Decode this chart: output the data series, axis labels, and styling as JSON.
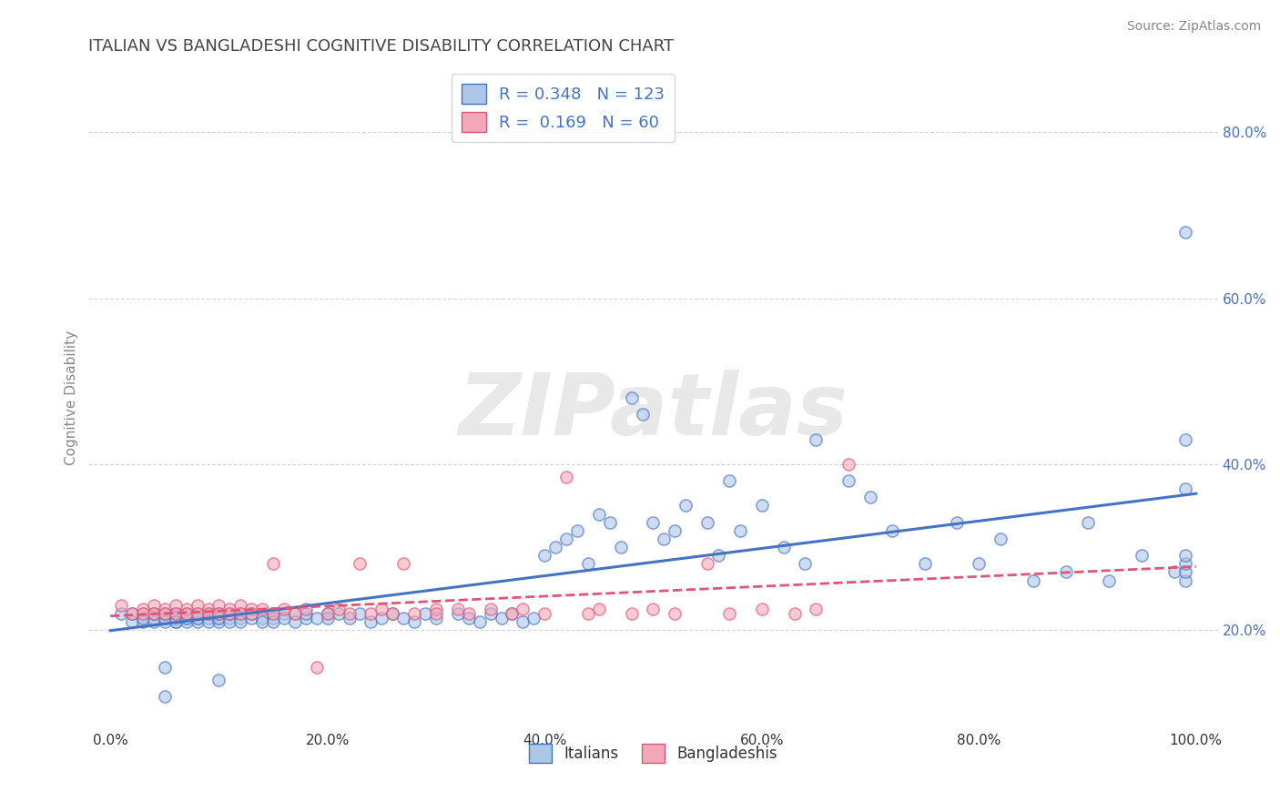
{
  "title": "ITALIAN VS BANGLADESHI COGNITIVE DISABILITY CORRELATION CHART",
  "source": "Source: ZipAtlas.com",
  "xlabel_italians": "Italians",
  "xlabel_bangladeshis": "Bangladeshis",
  "ylabel": "Cognitive Disability",
  "xlim": [
    -0.02,
    1.02
  ],
  "ylim": [
    0.08,
    0.88
  ],
  "xticks": [
    0.0,
    0.2,
    0.4,
    0.6,
    0.8,
    1.0
  ],
  "xticklabels": [
    "0.0%",
    "20.0%",
    "40.0%",
    "60.0%",
    "80.0%",
    "100.0%"
  ],
  "yticks": [
    0.2,
    0.4,
    0.6,
    0.8
  ],
  "yticklabels": [
    "20.0%",
    "40.0%",
    "60.0%",
    "80.0%"
  ],
  "R_italian": 0.348,
  "N_italian": 123,
  "R_bangladeshi": 0.169,
  "N_bangladeshi": 60,
  "italian_color": "#aec6e8",
  "bangladeshi_color": "#f2a8b8",
  "italian_line_color": "#4472c4",
  "bangladeshi_line_color": "#e05575",
  "watermark": "ZIPatlas",
  "italian_x": [
    0.01,
    0.02,
    0.02,
    0.03,
    0.03,
    0.03,
    0.04,
    0.04,
    0.04,
    0.04,
    0.05,
    0.05,
    0.05,
    0.05,
    0.05,
    0.06,
    0.06,
    0.06,
    0.06,
    0.06,
    0.06,
    0.07,
    0.07,
    0.07,
    0.07,
    0.07,
    0.08,
    0.08,
    0.08,
    0.08,
    0.09,
    0.09,
    0.09,
    0.1,
    0.1,
    0.1,
    0.1,
    0.1,
    0.11,
    0.11,
    0.11,
    0.12,
    0.12,
    0.12,
    0.13,
    0.13,
    0.14,
    0.14,
    0.15,
    0.15,
    0.15,
    0.16,
    0.16,
    0.17,
    0.17,
    0.18,
    0.18,
    0.19,
    0.2,
    0.2,
    0.21,
    0.22,
    0.23,
    0.24,
    0.25,
    0.26,
    0.27,
    0.28,
    0.29,
    0.3,
    0.32,
    0.33,
    0.34,
    0.35,
    0.36,
    0.37,
    0.38,
    0.39,
    0.4,
    0.41,
    0.42,
    0.43,
    0.44,
    0.45,
    0.46,
    0.47,
    0.48,
    0.49,
    0.5,
    0.51,
    0.52,
    0.53,
    0.55,
    0.56,
    0.57,
    0.58,
    0.6,
    0.62,
    0.64,
    0.65,
    0.68,
    0.7,
    0.72,
    0.75,
    0.78,
    0.8,
    0.82,
    0.85,
    0.88,
    0.9,
    0.92,
    0.95,
    0.98,
    0.99,
    0.99,
    0.99,
    0.99,
    0.99,
    0.99,
    0.99,
    0.05,
    0.05,
    0.1
  ],
  "italian_y": [
    0.22,
    0.21,
    0.22,
    0.22,
    0.21,
    0.215,
    0.22,
    0.215,
    0.21,
    0.22,
    0.215,
    0.22,
    0.21,
    0.215,
    0.22,
    0.215,
    0.22,
    0.21,
    0.215,
    0.22,
    0.21,
    0.215,
    0.22,
    0.21,
    0.215,
    0.22,
    0.215,
    0.22,
    0.21,
    0.215,
    0.215,
    0.22,
    0.21,
    0.215,
    0.22,
    0.21,
    0.215,
    0.22,
    0.215,
    0.21,
    0.22,
    0.215,
    0.22,
    0.21,
    0.215,
    0.22,
    0.215,
    0.21,
    0.22,
    0.215,
    0.21,
    0.22,
    0.215,
    0.22,
    0.21,
    0.215,
    0.22,
    0.215,
    0.22,
    0.215,
    0.22,
    0.215,
    0.22,
    0.21,
    0.215,
    0.22,
    0.215,
    0.21,
    0.22,
    0.215,
    0.22,
    0.215,
    0.21,
    0.22,
    0.215,
    0.22,
    0.21,
    0.215,
    0.29,
    0.3,
    0.31,
    0.32,
    0.28,
    0.34,
    0.33,
    0.3,
    0.48,
    0.46,
    0.33,
    0.31,
    0.32,
    0.35,
    0.33,
    0.29,
    0.38,
    0.32,
    0.35,
    0.3,
    0.28,
    0.43,
    0.38,
    0.36,
    0.32,
    0.28,
    0.33,
    0.28,
    0.31,
    0.26,
    0.27,
    0.33,
    0.26,
    0.29,
    0.27,
    0.26,
    0.27,
    0.28,
    0.29,
    0.43,
    0.37,
    0.68,
    0.155,
    0.12,
    0.14
  ],
  "bangladeshi_x": [
    0.01,
    0.02,
    0.03,
    0.03,
    0.04,
    0.04,
    0.05,
    0.05,
    0.06,
    0.06,
    0.07,
    0.07,
    0.08,
    0.08,
    0.09,
    0.09,
    0.1,
    0.1,
    0.11,
    0.11,
    0.12,
    0.12,
    0.13,
    0.13,
    0.14,
    0.15,
    0.15,
    0.16,
    0.17,
    0.18,
    0.19,
    0.2,
    0.21,
    0.22,
    0.23,
    0.24,
    0.25,
    0.26,
    0.27,
    0.28,
    0.3,
    0.3,
    0.32,
    0.33,
    0.35,
    0.37,
    0.38,
    0.4,
    0.42,
    0.44,
    0.45,
    0.48,
    0.5,
    0.52,
    0.55,
    0.57,
    0.6,
    0.63,
    0.65,
    0.68
  ],
  "bangladeshi_y": [
    0.23,
    0.22,
    0.225,
    0.22,
    0.23,
    0.22,
    0.225,
    0.22,
    0.23,
    0.22,
    0.225,
    0.22,
    0.23,
    0.22,
    0.225,
    0.22,
    0.23,
    0.22,
    0.225,
    0.22,
    0.23,
    0.22,
    0.225,
    0.22,
    0.225,
    0.28,
    0.22,
    0.225,
    0.22,
    0.225,
    0.155,
    0.22,
    0.225,
    0.22,
    0.28,
    0.22,
    0.225,
    0.22,
    0.28,
    0.22,
    0.225,
    0.22,
    0.225,
    0.22,
    0.225,
    0.22,
    0.225,
    0.22,
    0.385,
    0.22,
    0.225,
    0.22,
    0.225,
    0.22,
    0.28,
    0.22,
    0.225,
    0.22,
    0.225,
    0.4
  ],
  "italian_line_start_x": 0.0,
  "italian_line_end_x": 1.0,
  "bangladeshi_line_start_x": 0.0,
  "bangladeshi_line_end_x": 1.0
}
